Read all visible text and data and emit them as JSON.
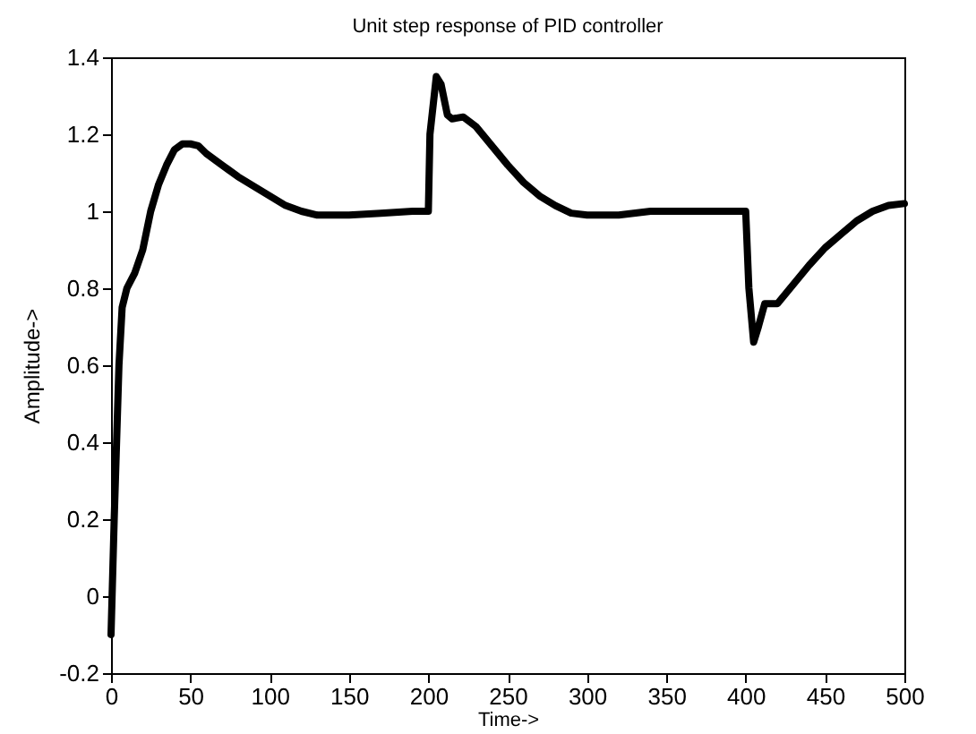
{
  "chart_data": {
    "type": "line",
    "title": "Unit step response of PID controller",
    "xlabel": "Time->",
    "ylabel": "Amplitude->",
    "x": [
      0,
      2,
      5,
      7,
      10,
      15,
      20,
      25,
      30,
      35,
      40,
      45,
      50,
      55,
      60,
      70,
      80,
      90,
      100,
      110,
      120,
      130,
      150,
      170,
      190,
      200,
      201,
      205,
      208,
      212,
      215,
      222,
      230,
      240,
      250,
      260,
      270,
      280,
      290,
      300,
      320,
      340,
      360,
      400,
      402,
      405,
      408,
      412,
      420,
      430,
      440,
      450,
      460,
      470,
      480,
      490,
      500
    ],
    "series": [
      {
        "color": "#000000",
        "values": [
          -0.1,
          0.2,
          0.6,
          0.75,
          0.8,
          0.84,
          0.9,
          1.0,
          1.07,
          1.12,
          1.16,
          1.175,
          1.175,
          1.17,
          1.15,
          1.12,
          1.09,
          1.065,
          1.04,
          1.015,
          1.0,
          0.99,
          0.99,
          0.995,
          1.0,
          1.0,
          1.2,
          1.35,
          1.33,
          1.25,
          1.24,
          1.245,
          1.22,
          1.17,
          1.12,
          1.075,
          1.04,
          1.015,
          0.995,
          0.99,
          0.99,
          1.0,
          1.0,
          1.0,
          0.8,
          0.66,
          0.7,
          0.76,
          0.76,
          0.81,
          0.86,
          0.905,
          0.94,
          0.975,
          1.0,
          1.015,
          1.02
        ]
      }
    ],
    "xlim": [
      0,
      500
    ],
    "xticks": [
      0,
      50,
      100,
      150,
      200,
      250,
      300,
      350,
      400,
      450,
      500
    ],
    "ylim": [
      -0.2,
      1.4
    ],
    "yticks": [
      -0.2,
      0,
      0.2,
      0.4,
      0.6,
      0.8,
      1,
      1.2,
      1.4
    ],
    "grid": false,
    "legend": false,
    "line_style": "solid",
    "marker": "none"
  }
}
